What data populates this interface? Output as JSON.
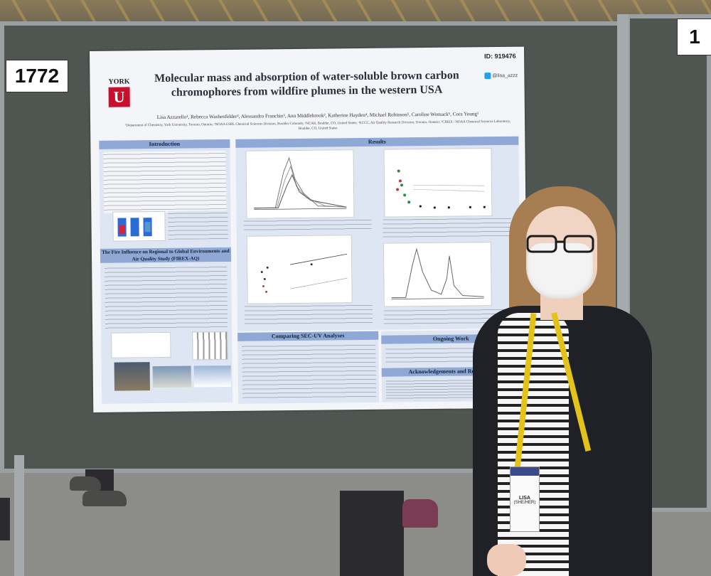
{
  "booth_numbers": {
    "left": "1772",
    "right": "1"
  },
  "poster": {
    "id": "ID: 919476",
    "logo_text": "YORK",
    "logo_letter": "U",
    "twitter": "@lisa_azzz",
    "title": "Molecular mass and absorption of water-soluble brown carbon chromophores from wildfire plumes in the western USA",
    "authors": "Lisa Azzarello¹, Rebecca Washenfelder², Alessandro Franchin³, Ann Middlebrook², Katherine Hayden⁴, Michael Robinson⁵, Caroline Womack⁵, Cora Young¹",
    "affiliations": "¹Department of Chemistry, York University, Toronto, Ontario; ²NOAA ESRL Chemical Sciences Division, Boulder Colorado; ³NCAR, Boulder, CO, United States; ⁴ECCC, Air Quality Research Division, Toronto, Ontario; ⁵CIRES / NOAA Chemical Sciences Laboratory, Boulder, CO, United States",
    "sections": {
      "introduction": "Introduction",
      "fire_influence": "The Fire Influence on Regional to Global Environments and Air Quality Study (FIREX-AQ)",
      "results": "Results",
      "comparing": "Comparing SEC-UV Analyses",
      "ongoing": "Ongoing Work",
      "acknowledgements": "Acknowledgements and References"
    }
  },
  "badge": {
    "line1": "LISA",
    "line2": "(SHE/HER)"
  }
}
